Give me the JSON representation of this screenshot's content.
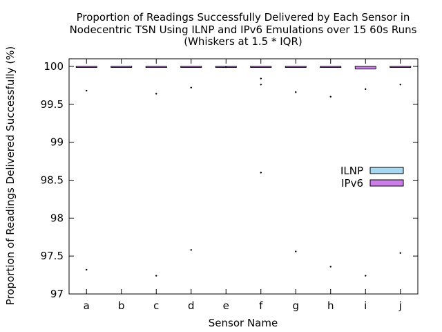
{
  "chart_data": {
    "type": "box",
    "title_lines": [
      "Proportion of Readings Successfully Delivered by Each Sensor in",
      "Nodecentric TSN Using ILNP and IPv6 Emulations over 15 60s Runs",
      "(Whiskers at 1.5 * IQR)"
    ],
    "xlabel": "Sensor Name",
    "ylabel": "Proportion of Readings Delivered Successfully (%)",
    "ylim": [
      97,
      100.1
    ],
    "yticks": [
      97,
      97.5,
      98,
      98.5,
      99,
      99.5,
      100
    ],
    "ytick_labels": [
      "97",
      "97.5",
      "98",
      "98.5",
      "99",
      "99.5",
      "100"
    ],
    "categories": [
      "a",
      "b",
      "c",
      "d",
      "e",
      "f",
      "g",
      "h",
      "i",
      "j"
    ],
    "series": [
      {
        "name": "ILNP",
        "color": "#a6d8ef",
        "boxes": [
          {
            "category": "a",
            "q1": 100,
            "median": 100,
            "q3": 100,
            "outliers": [
              99.68,
              97.32
            ]
          },
          {
            "category": "b",
            "q1": 100,
            "median": 100,
            "q3": 100,
            "outliers": []
          },
          {
            "category": "c",
            "q1": 100,
            "median": 100,
            "q3": 100,
            "outliers": [
              99.64,
              97.24
            ]
          },
          {
            "category": "d",
            "q1": 100,
            "median": 100,
            "q3": 100,
            "outliers": [
              99.72,
              97.58
            ]
          },
          {
            "category": "e",
            "q1": 100,
            "median": 100,
            "q3": 100,
            "outliers": [
              99.99
            ]
          },
          {
            "category": "f",
            "q1": 100,
            "median": 100,
            "q3": 100,
            "outliers": [
              99.84,
              99.76,
              98.6
            ]
          },
          {
            "category": "g",
            "q1": 100,
            "median": 100,
            "q3": 100,
            "outliers": [
              99.66,
              97.56
            ]
          },
          {
            "category": "h",
            "q1": 100,
            "median": 100,
            "q3": 100,
            "outliers": [
              99.6,
              97.36
            ]
          },
          {
            "category": "i",
            "q1": 100,
            "median": 100,
            "q3": 100,
            "outliers": [
              99.7,
              97.24
            ]
          },
          {
            "category": "j",
            "q1": 100,
            "median": 100,
            "q3": 100,
            "outliers": [
              99.76,
              97.54
            ]
          }
        ]
      },
      {
        "name": "IPv6",
        "color": "#c97fe6",
        "boxes": [
          {
            "category": "a",
            "q1": 100,
            "median": 100,
            "q3": 100,
            "outliers": []
          },
          {
            "category": "b",
            "q1": 100,
            "median": 100,
            "q3": 100,
            "outliers": []
          },
          {
            "category": "c",
            "q1": 99.985,
            "median": 100,
            "q3": 100,
            "outliers": []
          },
          {
            "category": "d",
            "q1": 100,
            "median": 100,
            "q3": 100,
            "outliers": []
          },
          {
            "category": "e",
            "q1": 100,
            "median": 100,
            "q3": 100,
            "outliers": []
          },
          {
            "category": "f",
            "q1": 100,
            "median": 100,
            "q3": 100,
            "outliers": []
          },
          {
            "category": "g",
            "q1": 100,
            "median": 100,
            "q3": 100,
            "outliers": []
          },
          {
            "category": "h",
            "q1": 100,
            "median": 100,
            "q3": 100,
            "outliers": []
          },
          {
            "category": "i",
            "q1": 99.965,
            "median": 100,
            "q3": 100,
            "outliers": []
          },
          {
            "category": "j",
            "q1": 100,
            "median": 100,
            "q3": 100,
            "outliers": []
          }
        ]
      }
    ],
    "legend_position": "right",
    "grid": false
  }
}
